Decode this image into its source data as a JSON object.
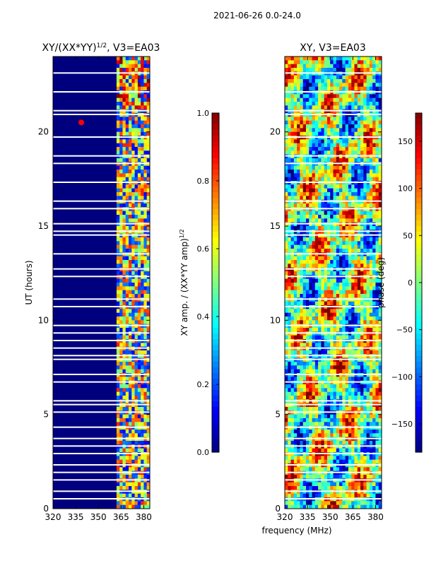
{
  "suptitle": "2021-06-26 0.0-24.0",
  "shared_xlabel": "frequency (MHz)",
  "colors": {
    "jet": [
      "#00007f",
      "#0000ff",
      "#007fff",
      "#00ffff",
      "#7fff7f",
      "#ffff00",
      "#ff7f00",
      "#ff0000",
      "#7f0000"
    ]
  },
  "chart_data": [
    {
      "type": "heatmap",
      "title_prefix": "XY/(XX*YY)",
      "title_sup": "1/2",
      "title_suffix": ", V3=EA03",
      "xlabel": "",
      "ylabel": "UT (hours)",
      "xlim": [
        320,
        384
      ],
      "ylim": [
        0,
        24
      ],
      "xticks": [
        320,
        335,
        350,
        365,
        380
      ],
      "yticks": [
        0,
        5,
        10,
        15,
        20
      ],
      "colorbar": {
        "label_prefix": "XY amp. / (XX*YY amp)",
        "label_sup": "1/2",
        "lim": [
          0,
          1
        ],
        "ticks": [
          "0.0",
          "0.2",
          "0.4",
          "0.6",
          "0.8",
          "1.0"
        ]
      }
    },
    {
      "type": "heatmap",
      "title": "XY, V3=EA03",
      "xlabel": "frequency (MHz)",
      "ylabel": "",
      "xlim": [
        320,
        384
      ],
      "ylim": [
        0,
        24
      ],
      "xticks": [
        320,
        335,
        350,
        365,
        380
      ],
      "yticks": [
        0,
        5,
        10,
        15,
        20
      ],
      "colorbar": {
        "label": "phase (deg)",
        "lim": [
          -180,
          180
        ],
        "ticks": [
          "150",
          "100",
          "50",
          "0",
          "−50",
          "−100",
          "−150"
        ],
        "tick_values": [
          150,
          100,
          50,
          0,
          -50,
          -100,
          -150
        ]
      }
    }
  ]
}
